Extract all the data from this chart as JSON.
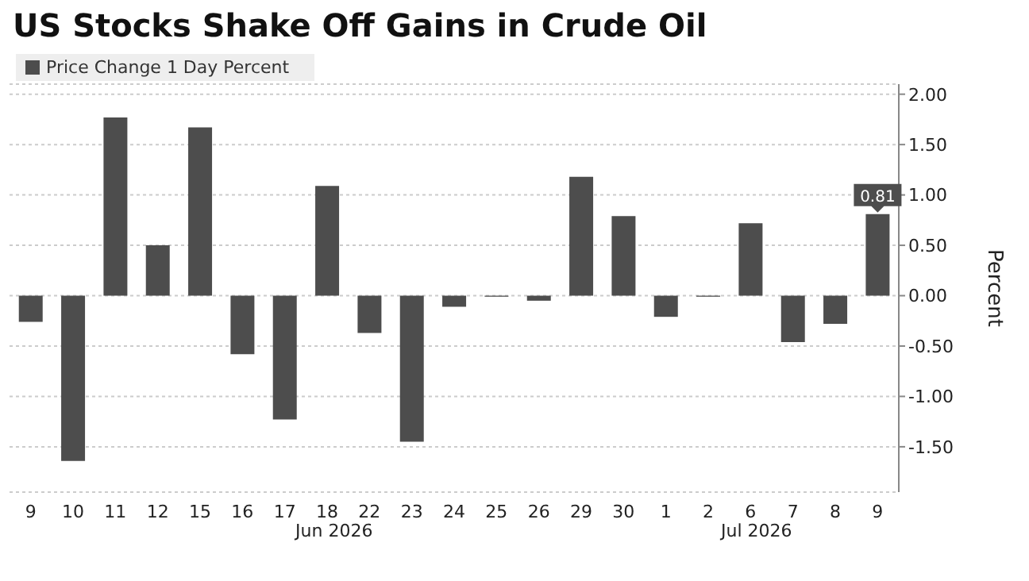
{
  "chart_data": {
    "type": "bar",
    "title": "US Stocks Shake Off Gains in Crude Oil",
    "categories": [
      "9",
      "10",
      "11",
      "12",
      "15",
      "16",
      "17",
      "18",
      "22",
      "23",
      "24",
      "25",
      "26",
      "29",
      "30",
      "1",
      "2",
      "6",
      "7",
      "8",
      "9"
    ],
    "series": [
      {
        "name": "Price Change 1 Day Percent",
        "color": "#4d4d4d",
        "values": [
          -0.26,
          -1.64,
          1.77,
          0.5,
          1.67,
          -0.58,
          -1.23,
          1.09,
          -0.37,
          -1.45,
          -0.11,
          -0.01,
          -0.05,
          1.18,
          0.79,
          -0.21,
          -0.01,
          0.72,
          -0.46,
          -0.28,
          0.81
        ],
        "value_labels": [
          null,
          null,
          null,
          null,
          null,
          null,
          null,
          null,
          null,
          null,
          null,
          null,
          null,
          null,
          null,
          null,
          null,
          null,
          null,
          null,
          "0.81"
        ]
      }
    ],
    "ylabel": "Percent",
    "ylim": [
      -1.95,
      2.1
    ],
    "yticks": [
      {
        "value": -1.5,
        "label": "-1.50"
      },
      {
        "value": -1,
        "label": "-1.00"
      },
      {
        "value": -0.5,
        "label": "-0.50"
      },
      {
        "value": 0,
        "label": "0.00"
      },
      {
        "value": 0.5,
        "label": "0.50"
      },
      {
        "value": 1,
        "label": "1.00"
      },
      {
        "value": 1.5,
        "label": "1.50"
      },
      {
        "value": 2,
        "label": "2.00"
      }
    ],
    "annotations": [
      "Jun 2026",
      "Jul 2026"
    ],
    "grid": "y",
    "legend": "top left"
  }
}
